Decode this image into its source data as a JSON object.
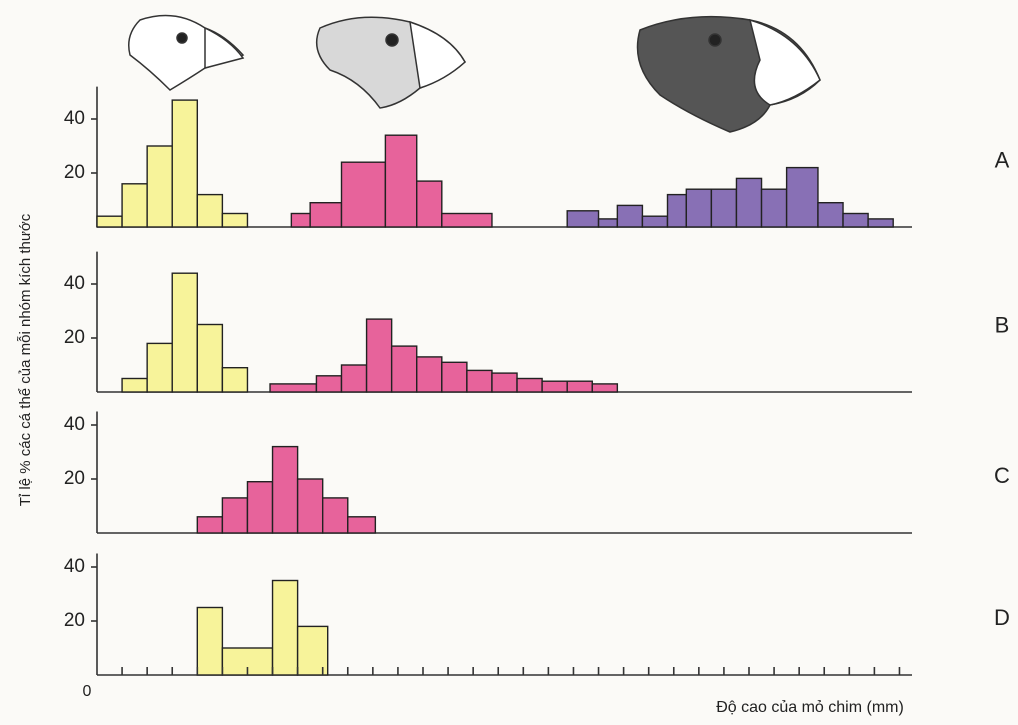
{
  "ylabel": "Tỉ lệ % các cá thể của mỗi nhóm kích thước",
  "xlabel": "Độ cao của mỏ chim (mm)",
  "chart_data": [
    {
      "type": "histogram",
      "label": "A",
      "ylim": [
        0,
        52
      ],
      "yticks": [
        20,
        40
      ],
      "series": [
        {
          "color": "#f7f39a",
          "bins": [
            0,
            1,
            2,
            3,
            4,
            5,
            6
          ],
          "counts": [
            4,
            16,
            30,
            47,
            12,
            5
          ]
        },
        {
          "color": "#e7639b",
          "bins": [
            7.75,
            8.5,
            9.75,
            11.5,
            12.75,
            13.75,
            15.75
          ],
          "counts": [
            5,
            9,
            24,
            34,
            17,
            5
          ]
        },
        {
          "color": "#8870b5",
          "bins": [
            18.75,
            20,
            20.75,
            21.75,
            22.75,
            23.5,
            24.5,
            25.5,
            26.5,
            27.5,
            28.75,
            29.75,
            30.75,
            31.75
          ],
          "counts": [
            6,
            3,
            8,
            4,
            12,
            14,
            14,
            18,
            14,
            22,
            9,
            5,
            3
          ]
        }
      ]
    },
    {
      "type": "histogram",
      "label": "B",
      "ylim": [
        0,
        52
      ],
      "yticks": [
        20,
        40
      ],
      "series": [
        {
          "color": "#f7f39a",
          "bins": [
            1,
            2,
            3,
            4,
            5,
            6
          ],
          "counts": [
            5,
            18,
            44,
            25,
            9
          ]
        },
        {
          "color": "#e7639b",
          "bins": [
            6.9,
            8.75,
            9.75,
            10.75,
            11.75,
            12.75,
            13.75,
            14.75,
            15.75,
            16.75,
            17.75,
            18.75,
            19.75,
            20.75
          ],
          "counts": [
            3,
            6,
            10,
            27,
            17,
            13,
            11,
            8,
            7,
            5,
            4,
            4,
            3
          ]
        }
      ]
    },
    {
      "type": "histogram",
      "label": "C",
      "ylim": [
        0,
        45
      ],
      "yticks": [
        20,
        40
      ],
      "series": [
        {
          "color": "#e7639b",
          "bins": [
            4,
            5,
            6,
            7,
            8,
            9,
            10,
            11.1
          ],
          "counts": [
            6,
            13,
            19,
            32,
            20,
            13,
            6
          ]
        }
      ]
    },
    {
      "type": "histogram",
      "label": "D",
      "ylim": [
        0,
        45
      ],
      "yticks": [
        20,
        40
      ],
      "xlim": [
        0,
        32.5
      ],
      "xticks": [
        0
      ],
      "x_minor_ticks": [
        1,
        2,
        3,
        4,
        5,
        6,
        7,
        8,
        9,
        10,
        11,
        12,
        13,
        14,
        15,
        16,
        17,
        18,
        19,
        20,
        21,
        22,
        23,
        24,
        25,
        26,
        27,
        28,
        29,
        30,
        31,
        32
      ],
      "series": [
        {
          "color": "#f7f39a",
          "bins": [
            4,
            5,
            7,
            8,
            9.2
          ],
          "counts": [
            25,
            10,
            35,
            18
          ]
        }
      ]
    }
  ]
}
